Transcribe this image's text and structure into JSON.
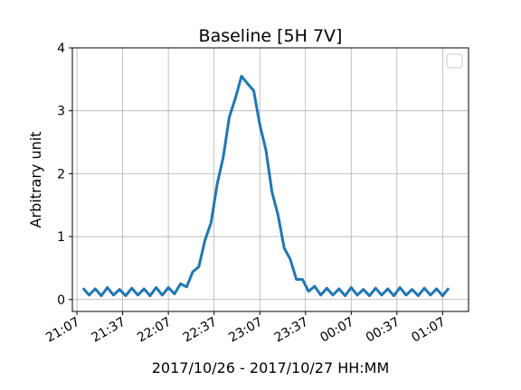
{
  "chart_data": {
    "type": "line",
    "title": "Baseline [5H 7V]",
    "xlabel": "2017/10/26 - 2017/10/27 HH:MM",
    "ylabel": "Arbitrary unit",
    "color": "#1f77b4",
    "grid": true,
    "x": [
      "2017-10-26 21:11",
      "2017-10-26 21:15",
      "2017-10-26 21:19",
      "2017-10-26 21:23",
      "2017-10-26 21:27",
      "2017-10-26 21:31",
      "2017-10-26 21:35",
      "2017-10-26 21:39",
      "2017-10-26 21:43",
      "2017-10-26 21:47",
      "2017-10-26 21:51",
      "2017-10-26 21:55",
      "2017-10-26 21:59",
      "2017-10-26 22:03",
      "2017-10-26 22:07",
      "2017-10-26 22:11",
      "2017-10-26 22:15",
      "2017-10-26 22:19",
      "2017-10-26 22:23",
      "2017-10-26 22:27",
      "2017-10-26 22:31",
      "2017-10-26 22:35",
      "2017-10-26 22:39",
      "2017-10-26 22:43",
      "2017-10-26 22:47",
      "2017-10-26 22:51",
      "2017-10-26 22:55",
      "2017-10-26 22:59",
      "2017-10-26 23:03",
      "2017-10-26 23:07",
      "2017-10-26 23:11",
      "2017-10-26 23:15",
      "2017-10-26 23:19",
      "2017-10-26 23:23",
      "2017-10-26 23:27",
      "2017-10-26 23:31",
      "2017-10-26 23:35",
      "2017-10-26 23:39",
      "2017-10-26 23:43",
      "2017-10-26 23:47",
      "2017-10-26 23:51",
      "2017-10-26 23:55",
      "2017-10-26 23:59",
      "2017-10-27 00:03",
      "2017-10-27 00:07",
      "2017-10-27 00:11",
      "2017-10-27 00:15",
      "2017-10-27 00:19",
      "2017-10-27 00:23",
      "2017-10-27 00:27",
      "2017-10-27 00:31",
      "2017-10-27 00:35",
      "2017-10-27 00:39",
      "2017-10-27 00:43",
      "2017-10-27 00:47",
      "2017-10-27 00:51",
      "2017-10-27 00:55",
      "2017-10-27 00:59",
      "2017-10-27 01:03",
      "2017-10-27 01:07",
      "2017-10-27 01:11"
    ],
    "values": [
      0.18,
      0.07,
      0.17,
      0.06,
      0.19,
      0.07,
      0.16,
      0.06,
      0.18,
      0.07,
      0.17,
      0.06,
      0.19,
      0.07,
      0.19,
      0.09,
      0.25,
      0.2,
      0.44,
      0.52,
      0.94,
      1.22,
      1.83,
      2.26,
      2.9,
      3.2,
      3.55,
      3.43,
      3.32,
      2.78,
      2.38,
      1.71,
      1.34,
      0.82,
      0.64,
      0.32,
      0.32,
      0.13,
      0.21,
      0.07,
      0.18,
      0.07,
      0.17,
      0.06,
      0.19,
      0.07,
      0.16,
      0.06,
      0.18,
      0.07,
      0.17,
      0.06,
      0.19,
      0.07,
      0.16,
      0.06,
      0.18,
      0.07,
      0.17,
      0.06,
      0.18
    ],
    "xlim": [
      "2017-10-26 21:04",
      "2017-10-27 01:24"
    ],
    "xticks": [
      {
        "value": "2017-10-26 21:07",
        "label": "21:07"
      },
      {
        "value": "2017-10-26 21:37",
        "label": "21:37"
      },
      {
        "value": "2017-10-26 22:07",
        "label": "22:07"
      },
      {
        "value": "2017-10-26 22:37",
        "label": "22:37"
      },
      {
        "value": "2017-10-26 23:07",
        "label": "23:07"
      },
      {
        "value": "2017-10-26 23:37",
        "label": "23:37"
      },
      {
        "value": "2017-10-27 00:07",
        "label": "00:07"
      },
      {
        "value": "2017-10-27 00:37",
        "label": "00:37"
      },
      {
        "value": "2017-10-27 01:07",
        "label": "01:07"
      }
    ],
    "ylim": [
      -0.19,
      4
    ],
    "yticks": [
      0,
      1,
      2,
      3,
      4
    ]
  }
}
